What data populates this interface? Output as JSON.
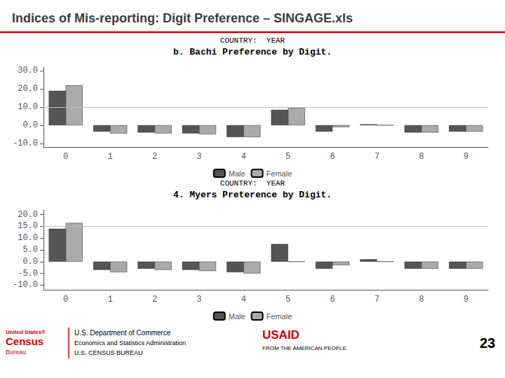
{
  "title": "Indices of Mis-reporting: Digit Preference – SINGAGE.xls",
  "annotations": [
    "United States®",
    "Census",
    "Bureau",
    "U.S. Department of Commerce",
    "Economics and Statistics Administration",
    "U.S. CENSUS BUREAU",
    "USAID",
    "FROM THE AMERICAN PEOPLE",
    "23"
  ],
  "chart_data": [
    {
      "type": "bar",
      "subtitle": "COUNTRY:  YEAR",
      "title": "b. Bachi Preference by Digit.",
      "categories": [
        "0",
        "1",
        "2",
        "3",
        "4",
        "5",
        "6",
        "7",
        "8",
        "9"
      ],
      "series": [
        {
          "name": "Male",
          "color": "#555555",
          "values": [
            19.0,
            -3.5,
            -4.0,
            -4.5,
            -6.5,
            8.5,
            -3.5,
            0.5,
            -4.0,
            -3.5
          ]
        },
        {
          "name": "Female",
          "color": "#AAAAAA",
          "values": [
            22.0,
            -4.5,
            -4.5,
            -5.0,
            -6.5,
            9.5,
            -1.0,
            0.0,
            -4.0,
            -3.5
          ]
        }
      ],
      "ylim": [
        -12,
        32
      ],
      "yticks": [
        {
          "value": -10,
          "label": "-10.0"
        },
        {
          "value": 0,
          "label": "0.0"
        },
        {
          "value": 10,
          "label": "10.0"
        },
        {
          "value": 20,
          "label": "20.0"
        },
        {
          "value": 30,
          "label": "30.0"
        }
      ],
      "hline": 10,
      "grid": false,
      "legend": "bottom"
    },
    {
      "type": "bar",
      "subtitle": "COUNTRY:  YEAR",
      "title": "4. Myers Preterence by Digit.",
      "categories": [
        "0",
        "1",
        "2",
        "3",
        "4",
        "5",
        "6",
        "7",
        "8",
        "9"
      ],
      "series": [
        {
          "name": "Male",
          "color": "#555555",
          "values": [
            14.0,
            -3.5,
            -3.0,
            -3.5,
            -4.5,
            7.5,
            -3.0,
            1.0,
            -3.0,
            -3.0
          ]
        },
        {
          "name": "Female",
          "color": "#AAAAAA",
          "values": [
            16.5,
            -4.5,
            -3.5,
            -4.0,
            -5.0,
            0.0,
            -1.5,
            0.0,
            -3.0,
            -3.0
          ]
        }
      ],
      "ylim": [
        -12,
        22
      ],
      "yticks": [
        {
          "value": -10,
          "label": "-10.0"
        },
        {
          "value": -5,
          "label": "-5.0"
        },
        {
          "value": 0,
          "label": "0.0"
        },
        {
          "value": 5,
          "label": "5.0"
        },
        {
          "value": 10,
          "label": "10.0"
        },
        {
          "value": 15,
          "label": "15.0"
        },
        {
          "value": 20,
          "label": "20.0"
        }
      ],
      "hline": 15,
      "grid": false,
      "legend": "bottom"
    }
  ]
}
